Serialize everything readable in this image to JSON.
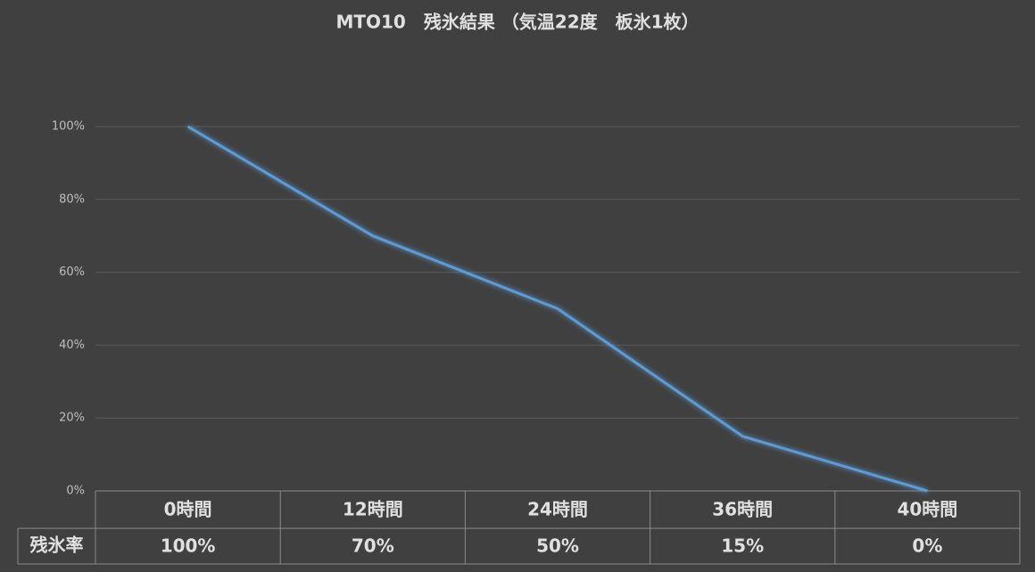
{
  "chart_data": {
    "type": "line",
    "title": "MTO10　残氷結果 （気温22度　板氷1枚）",
    "categories": [
      "0時間",
      "12時間",
      "24時間",
      "36時間",
      "40時間"
    ],
    "series": [
      {
        "name": "残氷率",
        "color": "#5b9bd5",
        "values": [
          100,
          70,
          50,
          15,
          0
        ],
        "value_labels": [
          "100%",
          "70%",
          "50%",
          "15%",
          "0%"
        ]
      }
    ],
    "ylim": [
      0,
      100
    ],
    "yticks": [
      {
        "value": 0,
        "label": "0%"
      },
      {
        "value": 20,
        "label": "20%"
      },
      {
        "value": 40,
        "label": "40%"
      },
      {
        "value": 60,
        "label": "60%"
      },
      {
        "value": 80,
        "label": "80%"
      },
      {
        "value": 100,
        "label": "100%"
      }
    ],
    "grid": true
  }
}
